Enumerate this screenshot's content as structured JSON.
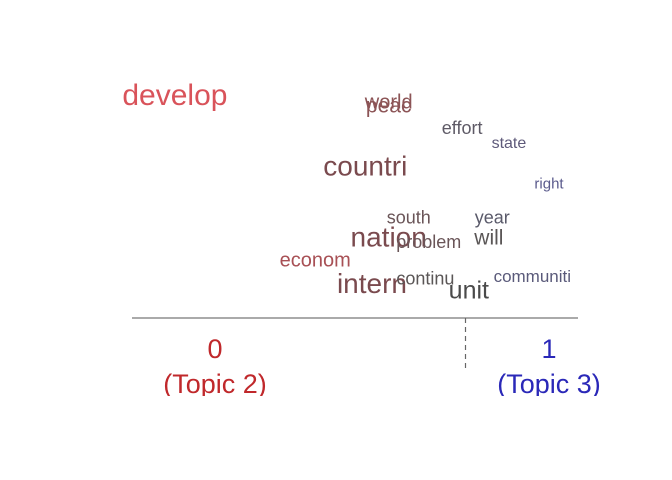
{
  "chart_data": {
    "type": "scatter",
    "title": "",
    "xlabel": "",
    "ylabel": "",
    "xlim": [
      0,
      1
    ],
    "midline": 0.75,
    "axis_end_labels": [
      {
        "value": "0",
        "topic": "(Topic 2)",
        "color": "#c0282b"
      },
      {
        "value": "1",
        "topic": "(Topic 3)",
        "color": "#2a28b8"
      }
    ],
    "words": [
      {
        "word": "develop",
        "x": -0.12,
        "size": 30,
        "rank": 0.0,
        "color": "#d9535a"
      },
      {
        "word": "peac",
        "x": 0.52,
        "size": 21,
        "rank": 0.05,
        "color": "#8c5456"
      },
      {
        "word": "world",
        "x": 0.52,
        "size": 20,
        "rank": 0.03,
        "color": "#8c5456"
      },
      {
        "word": "effort",
        "x": 0.74,
        "size": 18,
        "rank": 0.16,
        "color": "#5e5a66"
      },
      {
        "word": "state",
        "x": 0.88,
        "size": 16,
        "rank": 0.23,
        "color": "#5e5a7a"
      },
      {
        "word": "countri",
        "x": 0.45,
        "size": 28,
        "rank": 0.35,
        "color": "#7a4a4e"
      },
      {
        "word": "right",
        "x": 1.0,
        "size": 15,
        "rank": 0.43,
        "color": "#5a5a8c"
      },
      {
        "word": "south",
        "x": 0.58,
        "size": 18,
        "rank": 0.6,
        "color": "#6a5558"
      },
      {
        "word": "year",
        "x": 0.83,
        "size": 18,
        "rank": 0.6,
        "color": "#5a5a6a"
      },
      {
        "word": "nation",
        "x": 0.52,
        "size": 28,
        "rank": 0.7,
        "color": "#7a4a4e"
      },
      {
        "word": "will",
        "x": 0.82,
        "size": 21,
        "rank": 0.7,
        "color": "#5a5656"
      },
      {
        "word": "problem",
        "x": 0.64,
        "size": 18,
        "rank": 0.72,
        "color": "#6a5558"
      },
      {
        "word": "econom",
        "x": 0.3,
        "size": 20,
        "rank": 0.81,
        "color": "#a85055"
      },
      {
        "word": "communiti",
        "x": 0.95,
        "size": 17,
        "rank": 0.89,
        "color": "#5a5a7a"
      },
      {
        "word": "intern",
        "x": 0.47,
        "size": 28,
        "rank": 0.93,
        "color": "#7a4a4e"
      },
      {
        "word": "continu",
        "x": 0.63,
        "size": 18,
        "rank": 0.9,
        "color": "#5a5656"
      },
      {
        "word": "unit",
        "x": 0.76,
        "size": 25,
        "rank": 0.96,
        "color": "#4a4a4a"
      }
    ]
  }
}
